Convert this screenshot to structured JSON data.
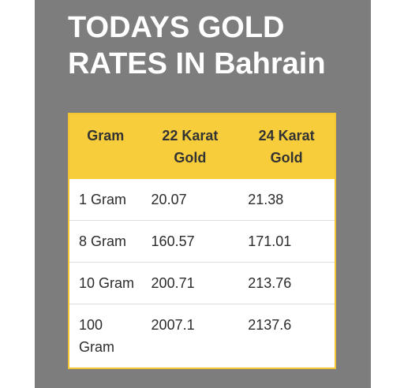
{
  "header": {
    "title": "TODAYS GOLD RATES IN Bahrain"
  },
  "table": {
    "columns": [
      "Gram",
      "22 Karat Gold",
      "24 Karat Gold"
    ],
    "rows": [
      [
        "1 Gram",
        "20.07",
        "21.38"
      ],
      [
        "8 Gram",
        "160.57",
        "171.01"
      ],
      [
        "10 Gram",
        "200.71",
        "213.76"
      ],
      [
        "100 Gram",
        "2007.1",
        "2137.6"
      ]
    ]
  },
  "colors": {
    "background_panel": "#7d7d7d",
    "header_yellow": "#f7cd3b",
    "title_text": "#ffffff"
  }
}
